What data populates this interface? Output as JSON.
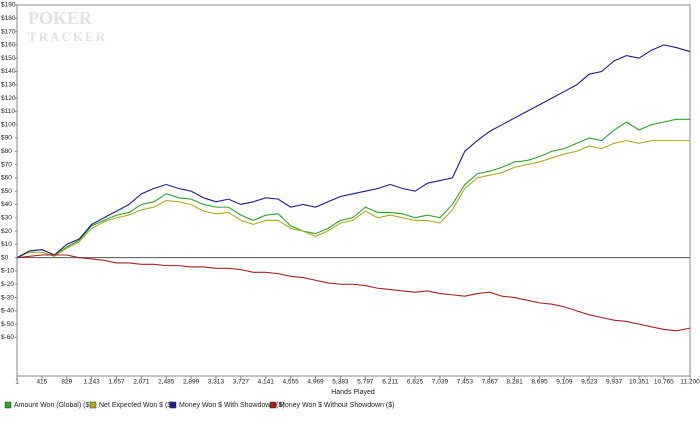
{
  "chart_data": {
    "type": "line",
    "watermark": [
      "POKER",
      "TRACKER"
    ],
    "xlabel": "Hands Played",
    "xlim": [
      1,
      11200
    ],
    "ylim": [
      -89,
      190
    ],
    "grid": false,
    "legend": "bottom",
    "xticks": [
      1,
      415,
      829,
      {
        "value": 1243,
        "label": "1,243"
      },
      {
        "value": 1657,
        "label": "1,657"
      },
      {
        "value": 2071,
        "label": "2,071"
      },
      {
        "value": 2485,
        "label": "2,485"
      },
      {
        "value": 2899,
        "label": "2,899"
      },
      {
        "value": 3313,
        "label": "3,313"
      },
      {
        "value": 3727,
        "label": "3,727"
      },
      {
        "value": 4141,
        "label": "4,141"
      },
      {
        "value": 4555,
        "label": "4,555"
      },
      {
        "value": 4969,
        "label": "4,969"
      },
      {
        "value": 5383,
        "label": "5,383"
      },
      {
        "value": 5797,
        "label": "5,797"
      },
      {
        "value": 6211,
        "label": "6,211"
      },
      {
        "value": 6625,
        "label": "6,625"
      },
      {
        "value": 7039,
        "label": "7,039"
      },
      {
        "value": 7453,
        "label": "7,453"
      },
      {
        "value": 7867,
        "label": "7,867"
      },
      {
        "value": 8281,
        "label": "8,281"
      },
      {
        "value": 8695,
        "label": "8,695"
      },
      {
        "value": 9109,
        "label": "9,109"
      },
      {
        "value": 9523,
        "label": "9,523"
      },
      {
        "value": 9937,
        "label": "9,937"
      },
      {
        "value": 10351,
        "label": "10,351"
      },
      {
        "value": 10765,
        "label": "10,765"
      },
      {
        "value": 11200,
        "label": "11,200"
      }
    ],
    "yticks": [
      {
        "value": 190,
        "label": "$190"
      },
      {
        "value": 180,
        "label": "$180"
      },
      {
        "value": 170,
        "label": "$170"
      },
      {
        "value": 160,
        "label": "$160"
      },
      {
        "value": 150,
        "label": "$150"
      },
      {
        "value": 140,
        "label": "$140"
      },
      {
        "value": 130,
        "label": "$130"
      },
      {
        "value": 120,
        "label": "$120"
      },
      {
        "value": 110,
        "label": "$110"
      },
      {
        "value": 100,
        "label": "$100"
      },
      {
        "value": 90,
        "label": "$90"
      },
      {
        "value": 80,
        "label": "$80"
      },
      {
        "value": 70,
        "label": "$70"
      },
      {
        "value": 60,
        "label": "$60"
      },
      {
        "value": 50,
        "label": "$50"
      },
      {
        "value": 40,
        "label": "$40"
      },
      {
        "value": 30,
        "label": "$30"
      },
      {
        "value": 20,
        "label": "$20"
      },
      {
        "value": 10,
        "label": "$10"
      },
      {
        "value": 0,
        "label": "$0"
      },
      {
        "value": -10,
        "label": "$-10"
      },
      {
        "value": -20,
        "label": "$-20"
      },
      {
        "value": -30,
        "label": "$-30"
      },
      {
        "value": -40,
        "label": "$-40"
      },
      {
        "value": -50,
        "label": "$-50"
      },
      {
        "value": -60,
        "label": "$-60"
      }
    ],
    "x": [
      1,
      208,
      415,
      622,
      829,
      1036,
      1243,
      1450,
      1657,
      1864,
      2071,
      2278,
      2485,
      2692,
      2899,
      3106,
      3313,
      3520,
      3727,
      3934,
      4141,
      4348,
      4555,
      4762,
      4969,
      5176,
      5383,
      5590,
      5797,
      6004,
      6211,
      6418,
      6625,
      6832,
      7039,
      7246,
      7453,
      7660,
      7867,
      8074,
      8281,
      8488,
      8695,
      8902,
      9109,
      9316,
      9523,
      9730,
      9937,
      10144,
      10351,
      10558,
      10765,
      10972,
      11200
    ],
    "series": [
      {
        "name": "Amount Won (Global) ($)",
        "color": "#33a033",
        "values": [
          0,
          5,
          6,
          2,
          8,
          13,
          24,
          28,
          32,
          34,
          40,
          42,
          48,
          45,
          44,
          40,
          38,
          38,
          32,
          28,
          32,
          33,
          24,
          20,
          18,
          22,
          28,
          30,
          38,
          34,
          34,
          33,
          30,
          32,
          30,
          40,
          55,
          63,
          65,
          68,
          72,
          73,
          76,
          80,
          82,
          86,
          90,
          88,
          96,
          102,
          96,
          100,
          102,
          104,
          104
        ]
      },
      {
        "name": "Net Expected Won $ ($)",
        "color": "#a9ad24",
        "values": [
          0,
          4,
          4,
          1,
          7,
          12,
          22,
          27,
          30,
          32,
          36,
          38,
          43,
          42,
          40,
          35,
          33,
          34,
          28,
          25,
          28,
          28,
          22,
          20,
          16,
          20,
          26,
          28,
          35,
          30,
          32,
          30,
          28,
          28,
          26,
          36,
          52,
          60,
          62,
          64,
          68,
          70,
          72,
          75,
          78,
          80,
          84,
          82,
          86,
          88,
          86,
          88,
          88,
          88,
          88
        ]
      },
      {
        "name": "Money Won $ With Showdown ($)",
        "color": "#1c1c8c",
        "values": [
          0,
          5,
          6,
          2,
          10,
          14,
          25,
          30,
          35,
          40,
          48,
          52,
          55,
          52,
          50,
          45,
          42,
          44,
          40,
          42,
          45,
          44,
          38,
          40,
          38,
          42,
          46,
          48,
          50,
          52,
          55,
          52,
          50,
          56,
          58,
          60,
          80,
          88,
          95,
          100,
          105,
          110,
          115,
          120,
          125,
          130,
          138,
          140,
          148,
          152,
          150,
          156,
          160,
          158,
          155
        ]
      },
      {
        "name": "Money Won $ Without Showdown ($)",
        "color": "#a52222",
        "values": [
          0,
          1,
          2,
          2,
          2,
          0,
          -1,
          -2,
          -4,
          -4,
          -5,
          -5,
          -6,
          -6,
          -7,
          -7,
          -8,
          -8,
          -9,
          -11,
          -11,
          -12,
          -14,
          -15,
          -17,
          -19,
          -20,
          -20,
          -21,
          -23,
          -24,
          -25,
          -26,
          -25,
          -27,
          -28,
          -29,
          -27,
          -26,
          -29,
          -30,
          -32,
          -34,
          -35,
          -37,
          -40,
          -43,
          -45,
          -47,
          -48,
          -50,
          -52,
          -54,
          -55,
          -53
        ]
      }
    ]
  }
}
